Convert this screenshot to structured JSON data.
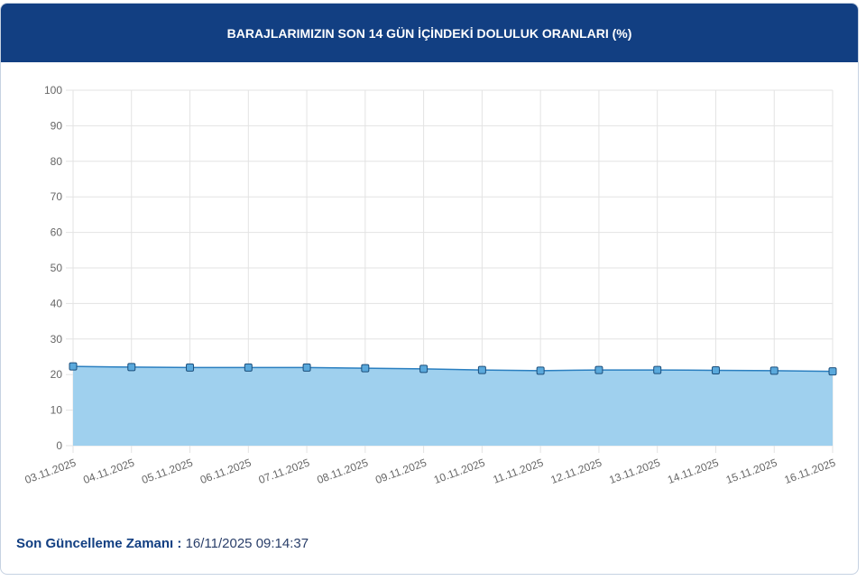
{
  "header": {
    "title": "BARAJLARIMIZIN SON 14 GÜN İÇİNDEKİ DOLULUK ORANLARI (%)"
  },
  "chart_data": {
    "type": "line",
    "categories": [
      "03.11.2025",
      "04.11.2025",
      "05.11.2025",
      "06.11.2025",
      "07.11.2025",
      "08.11.2025",
      "09.11.2025",
      "10.11.2025",
      "11.11.2025",
      "12.11.2025",
      "13.11.2025",
      "14.11.2025",
      "15.11.2025",
      "16.11.2025"
    ],
    "series": [
      {
        "color": "#2a7fc0",
        "fill": "#9fd0ee",
        "values": [
          22.3,
          22.1,
          22.0,
          22.0,
          22.0,
          21.8,
          21.6,
          21.3,
          21.1,
          21.3,
          21.3,
          21.2,
          21.1,
          20.9
        ]
      }
    ],
    "ylim": [
      0,
      100
    ],
    "yticks": [
      0,
      10,
      20,
      30,
      40,
      50,
      60,
      70,
      80,
      90,
      100
    ],
    "grid": true
  },
  "footer": {
    "label": "Son Güncelleme Zamanı :",
    "value": "16/11/2025 09:14:37"
  }
}
